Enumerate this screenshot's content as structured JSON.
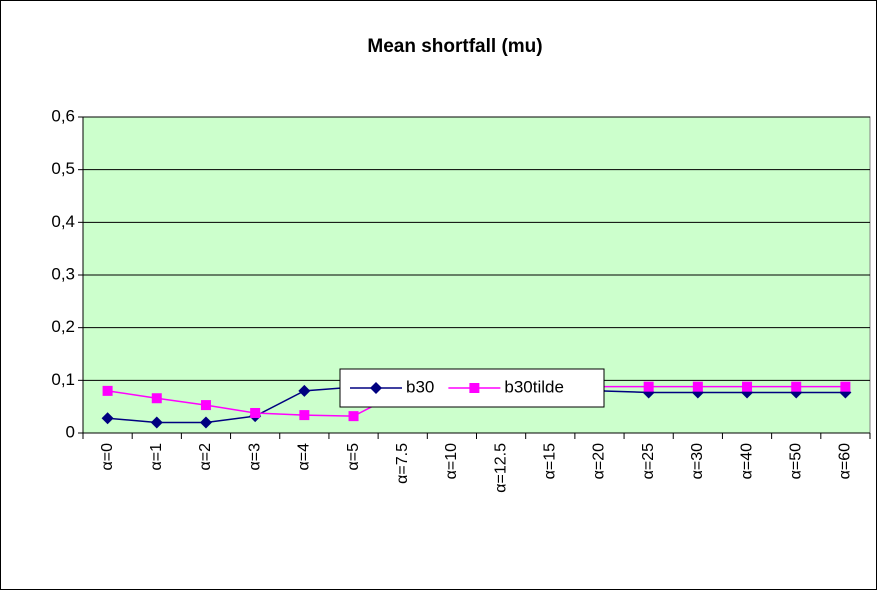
{
  "chart_data": {
    "type": "line",
    "title": "Mean shortfall (mu)",
    "categories": [
      "α=0",
      "α=1",
      "α=2",
      "α=3",
      "α=4",
      "α=5",
      "α=7.5",
      "α=10",
      "α=12.5",
      "α=15",
      "α=20",
      "α=25",
      "α=30",
      "α=40",
      "α=50",
      "α=60"
    ],
    "series": [
      {
        "name": "b30",
        "color": "#000080",
        "marker": "diamond",
        "values": [
          0.028,
          0.02,
          0.02,
          0.032,
          0.08,
          0.087,
          0.066,
          0.077,
          0.08,
          0.08,
          0.08,
          0.077,
          0.077,
          0.077,
          0.077,
          0.077
        ]
      },
      {
        "name": "b30tilde",
        "color": "#ff00ff",
        "marker": "square",
        "values": [
          0.08,
          0.066,
          0.053,
          0.038,
          0.034,
          0.032,
          0.08,
          0.094,
          0.09,
          0.085,
          0.088,
          0.088,
          0.088,
          0.088,
          0.088,
          0.088
        ]
      }
    ],
    "ylim": [
      0,
      0.6
    ],
    "yticks": [
      0,
      {
        "value": 0.1,
        "label": "0,1"
      },
      {
        "value": 0.2,
        "label": "0,2"
      },
      {
        "value": 0.3,
        "label": "0,3"
      },
      {
        "value": 0.4,
        "label": "0,4"
      },
      {
        "value": 0.5,
        "label": "0,5"
      },
      {
        "value": 0.6,
        "label": "0,6"
      }
    ],
    "grid": true,
    "plot_background": "#ccffcc",
    "legend": "bottom"
  }
}
